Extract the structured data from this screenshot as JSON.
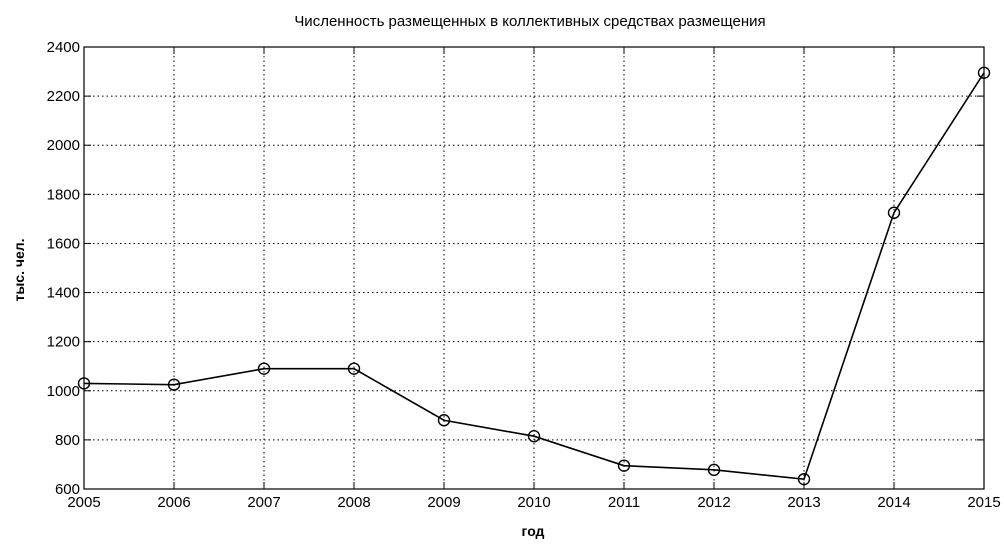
{
  "chart_data": {
    "type": "line",
    "title": "Численность размещенных в коллективных средствах размещения",
    "xlabel": "год",
    "ylabel": "тыс. чел.",
    "x": [
      2005,
      2006,
      2007,
      2008,
      2009,
      2010,
      2011,
      2012,
      2013,
      2014,
      2015
    ],
    "series": [
      {
        "values": [
          1030,
          1025,
          1090,
          1090,
          880,
          815,
          695,
          678,
          640,
          1725,
          2295
        ]
      }
    ],
    "xlim": [
      2005,
      2015
    ],
    "ylim": [
      600,
      2400
    ],
    "xticks": [
      "2005",
      "2006",
      "2007",
      "2008",
      "2009",
      "2010",
      "2011",
      "2012",
      "2013",
      "2014",
      "2015"
    ],
    "yticks": [
      "600",
      "800",
      "1000",
      "1200",
      "1400",
      "1600",
      "1800",
      "2000",
      "2200",
      "2400"
    ],
    "grid": true,
    "grid_style": "dotted",
    "marker": "circle",
    "line_color": "#000000"
  }
}
